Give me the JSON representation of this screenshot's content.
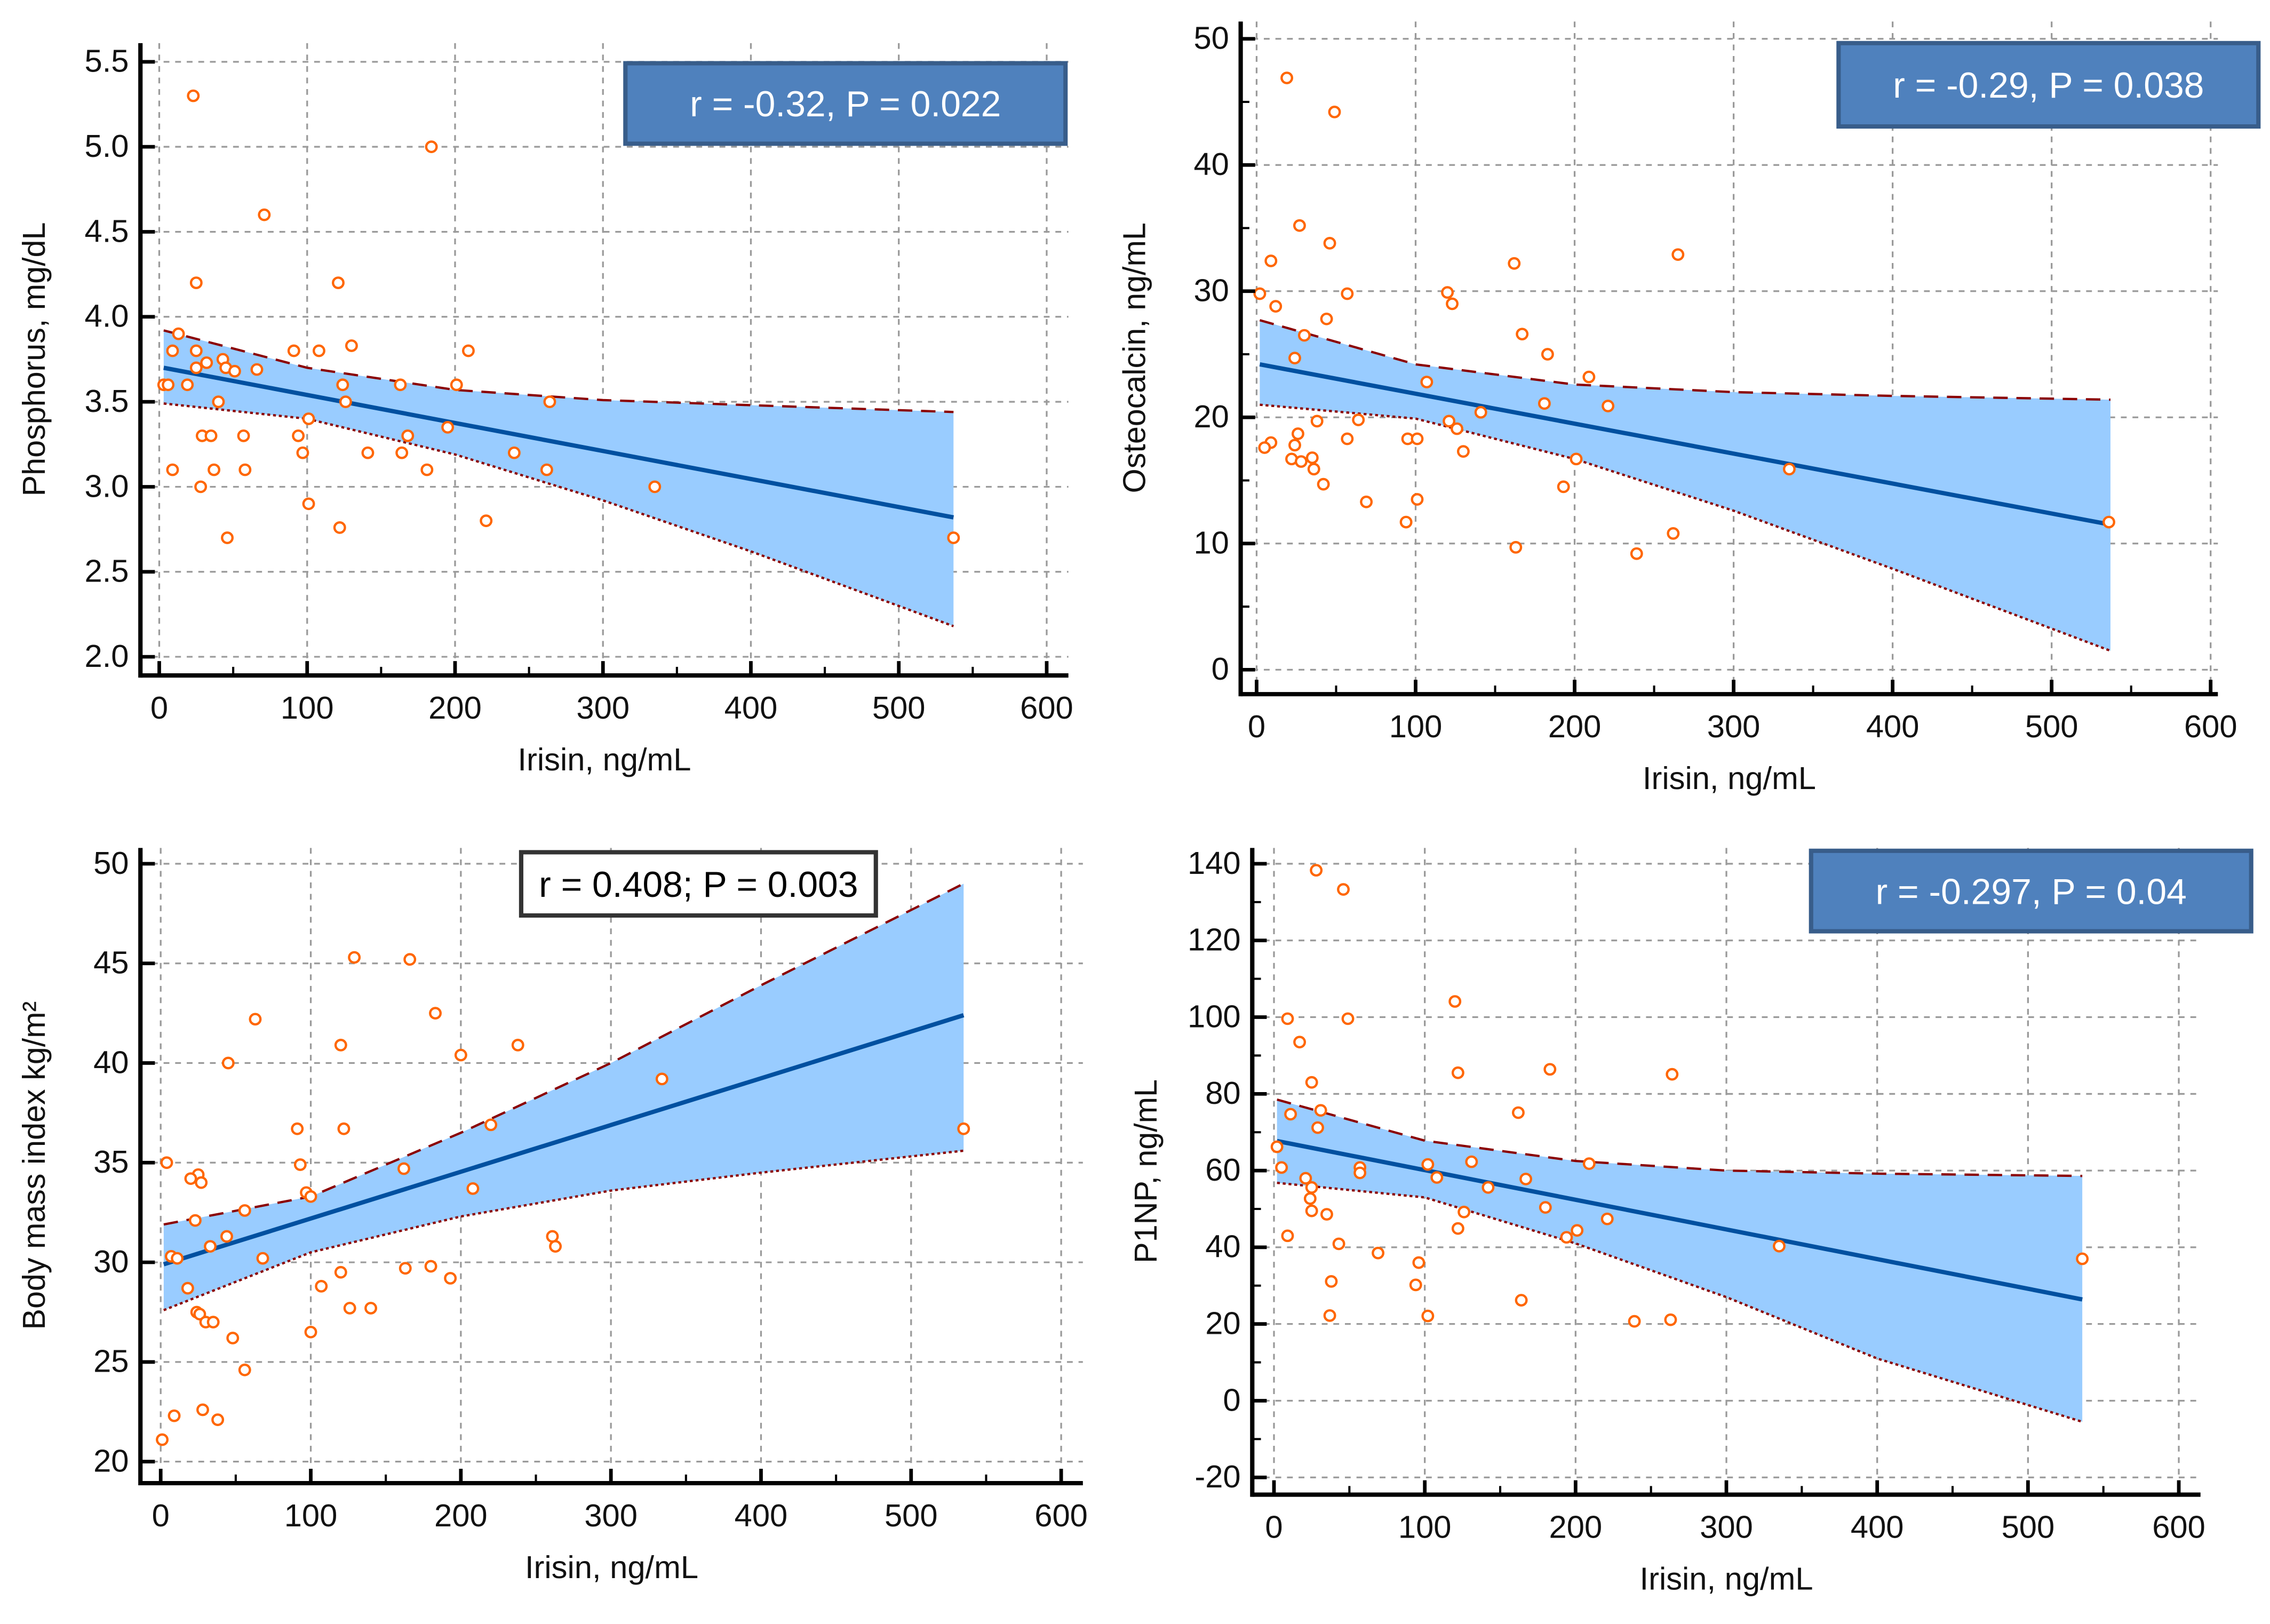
{
  "colors": {
    "band": "#99ccff",
    "regression": "#0050a0",
    "ci_border": "#8b0000",
    "points": "#ff6600",
    "stat_box_blue": "#4f81bd",
    "grid": "#9a9a9a"
  },
  "chart_data": [
    {
      "type": "scatter",
      "xlabel": "Irisin, ng/mL",
      "ylabel": "Phosphorus, mg/dL",
      "stat": "r = -0.32, P = 0.022",
      "stat_box_style": "blue",
      "xlim": [
        0,
        600
      ],
      "ylim": [
        2.0,
        5.5
      ],
      "x_ticks": [
        "0",
        "100",
        "200",
        "300",
        "400",
        "500",
        "600"
      ],
      "y_ticks": [
        "2.0",
        "2.5",
        "3.0",
        "3.5",
        "4.0",
        "4.5",
        "5.0",
        "5.5"
      ],
      "grid": true,
      "x": [
        23,
        184,
        71,
        25,
        121,
        13,
        9,
        25,
        91,
        108,
        130,
        209,
        25,
        32,
        43,
        45,
        51,
        66,
        3,
        6,
        19,
        124,
        163,
        201,
        40,
        126,
        264,
        101,
        29,
        35,
        57,
        94,
        168,
        195,
        97,
        141,
        164,
        240,
        9,
        37,
        58,
        181,
        262,
        28,
        335,
        101,
        221,
        122,
        46,
        537
      ],
      "y": [
        5.3,
        5.0,
        4.6,
        4.2,
        4.2,
        3.9,
        3.8,
        3.8,
        3.8,
        3.8,
        3.83,
        3.8,
        3.7,
        3.73,
        3.75,
        3.7,
        3.68,
        3.69,
        3.6,
        3.6,
        3.6,
        3.6,
        3.6,
        3.6,
        3.5,
        3.5,
        3.5,
        3.4,
        3.3,
        3.3,
        3.3,
        3.3,
        3.3,
        3.35,
        3.2,
        3.2,
        3.2,
        3.2,
        3.1,
        3.1,
        3.1,
        3.1,
        3.1,
        3.0,
        3.0,
        2.9,
        2.8,
        2.76,
        2.7,
        2.7
      ],
      "regression": {
        "x": [
          3,
          537
        ],
        "y": [
          3.7,
          2.82
        ]
      },
      "ci": {
        "x": [
          3,
          100,
          200,
          300,
          400,
          537
        ],
        "upper": [
          3.92,
          3.7,
          3.57,
          3.51,
          3.48,
          3.44
        ],
        "lower": [
          3.49,
          3.4,
          3.19,
          2.92,
          2.62,
          2.18
        ]
      }
    },
    {
      "type": "scatter",
      "xlabel": "Irisin, ng/mL",
      "ylabel": "Osteocalcin, ng/mL",
      "stat": "r = -0.29, P = 0.038",
      "stat_box_style": "blue",
      "xlim": [
        0,
        600
      ],
      "ylim": [
        0,
        50
      ],
      "x_ticks": [
        "0",
        "100",
        "200",
        "300",
        "400",
        "500",
        "600"
      ],
      "y_ticks": [
        "0",
        "10",
        "20",
        "30",
        "40",
        "50"
      ],
      "grid": true,
      "x": [
        19,
        49,
        27,
        46,
        265,
        9,
        162,
        2,
        57,
        120,
        123,
        12,
        44,
        30,
        167,
        183,
        24,
        209,
        107,
        181,
        221,
        141,
        38,
        64,
        121,
        126,
        26,
        57,
        95,
        101,
        9,
        5,
        24,
        130,
        35,
        22,
        28,
        201,
        36,
        335,
        42,
        193,
        69,
        101,
        94,
        536,
        262,
        163,
        239
      ],
      "y": [
        46.9,
        44.2,
        35.2,
        33.8,
        32.9,
        32.4,
        32.2,
        29.8,
        29.8,
        29.9,
        29.0,
        28.8,
        27.8,
        26.5,
        26.6,
        25.0,
        24.7,
        23.2,
        22.8,
        21.1,
        20.9,
        20.4,
        19.7,
        19.8,
        19.7,
        19.1,
        18.7,
        18.3,
        18.3,
        18.3,
        18.0,
        17.6,
        17.8,
        17.3,
        16.8,
        16.7,
        16.5,
        16.7,
        15.9,
        15.9,
        14.7,
        14.5,
        13.3,
        13.5,
        11.7,
        11.7,
        10.8,
        9.7,
        9.2
      ],
      "regression": {
        "x": [
          2,
          537
        ],
        "y": [
          24.2,
          11.5
        ]
      },
      "ci": {
        "x": [
          2,
          100,
          200,
          300,
          400,
          537
        ],
        "upper": [
          27.7,
          24.2,
          22.6,
          22.0,
          21.7,
          21.4
        ],
        "lower": [
          21.0,
          19.9,
          16.7,
          12.6,
          8.0,
          1.5
        ]
      }
    },
    {
      "type": "scatter",
      "xlabel": "Irisin, ng/mL",
      "ylabel": "Body mass index kg/m²",
      "stat": "r = 0.408; P = 0.003",
      "stat_box_style": "white",
      "xlim": [
        0,
        600
      ],
      "ylim": [
        20,
        50
      ],
      "x_ticks": [
        "0",
        "100",
        "200",
        "300",
        "400",
        "500",
        "600"
      ],
      "y_ticks": [
        "20",
        "25",
        "30",
        "35",
        "40",
        "45",
        "50"
      ],
      "grid": true,
      "x": [
        129,
        166,
        63,
        183,
        120,
        238,
        200,
        45,
        334,
        220,
        91,
        122,
        535,
        4,
        93,
        162,
        25,
        20,
        27,
        97,
        100,
        208,
        56,
        23,
        44,
        33,
        261,
        263,
        68,
        7,
        11,
        120,
        163,
        180,
        193,
        18,
        107,
        126,
        140,
        24,
        26,
        30,
        35,
        48,
        100,
        56,
        9,
        28,
        38,
        1
      ],
      "y": [
        45.3,
        45.2,
        42.2,
        42.5,
        40.9,
        40.9,
        40.4,
        40.0,
        39.2,
        36.9,
        36.7,
        36.7,
        36.7,
        35.0,
        34.9,
        34.7,
        34.4,
        34.2,
        34.0,
        33.5,
        33.3,
        33.7,
        32.6,
        32.1,
        31.3,
        30.8,
        31.3,
        30.8,
        30.2,
        30.3,
        30.2,
        29.5,
        29.7,
        29.8,
        29.2,
        28.7,
        28.8,
        27.7,
        27.7,
        27.5,
        27.4,
        27.0,
        27.0,
        26.2,
        26.5,
        24.6,
        22.3,
        22.6,
        22.1,
        21.1
      ],
      "regression": {
        "x": [
          2,
          535
        ],
        "y": [
          29.9,
          42.4
        ]
      },
      "ci": {
        "x": [
          2,
          100,
          200,
          300,
          400,
          535
        ],
        "upper": [
          31.9,
          33.3,
          36.5,
          40.0,
          43.9,
          49.0
        ],
        "lower": [
          27.6,
          30.5,
          32.3,
          33.6,
          34.5,
          35.6
        ]
      }
    },
    {
      "type": "scatter",
      "xlabel": "Irisin, ng/mL",
      "ylabel": "P1NP, ng/mL",
      "stat": "r = -0.297, P = 0.04",
      "stat_box_style": "blue",
      "xlim": [
        0,
        600
      ],
      "ylim": [
        -20,
        140
      ],
      "x_ticks": [
        "0",
        "100",
        "200",
        "300",
        "400",
        "500",
        "600"
      ],
      "y_ticks": [
        "-20",
        "0",
        "20",
        "40",
        "60",
        "80",
        "100",
        "120",
        "140"
      ],
      "grid": true,
      "x": [
        28,
        46,
        120,
        9,
        49,
        17,
        183,
        122,
        264,
        25,
        31,
        11,
        162,
        29,
        2,
        5,
        57,
        57,
        102,
        209,
        131,
        21,
        108,
        167,
        25,
        142,
        24,
        25,
        180,
        126,
        35,
        221,
        122,
        201,
        194,
        9,
        43,
        335,
        69,
        96,
        536,
        38,
        94,
        164,
        37,
        102,
        239,
        263
      ],
      "y": [
        138.3,
        133.3,
        104.1,
        99.6,
        99.6,
        93.5,
        86.4,
        85.5,
        85.1,
        83.0,
        75.7,
        74.7,
        75.1,
        71.2,
        66.2,
        60.8,
        60.8,
        59.4,
        61.6,
        61.8,
        62.3,
        58.0,
        58.2,
        57.8,
        55.6,
        55.6,
        52.7,
        49.5,
        50.4,
        49.2,
        48.6,
        47.4,
        44.9,
        44.4,
        42.6,
        43.0,
        40.9,
        40.3,
        38.5,
        36.0,
        37.0,
        31.1,
        30.2,
        26.2,
        22.2,
        22.1,
        20.7,
        21.1
      ],
      "regression": {
        "x": [
          2,
          536
        ],
        "y": [
          67.7,
          26.4
        ]
      },
      "ci": {
        "x": [
          2,
          100,
          200,
          300,
          400,
          536
        ],
        "upper": [
          78.5,
          67.8,
          62.5,
          60.0,
          59.2,
          58.6
        ],
        "lower": [
          56.8,
          53.0,
          41.0,
          27.0,
          11.0,
          -5.5
        ]
      }
    }
  ]
}
